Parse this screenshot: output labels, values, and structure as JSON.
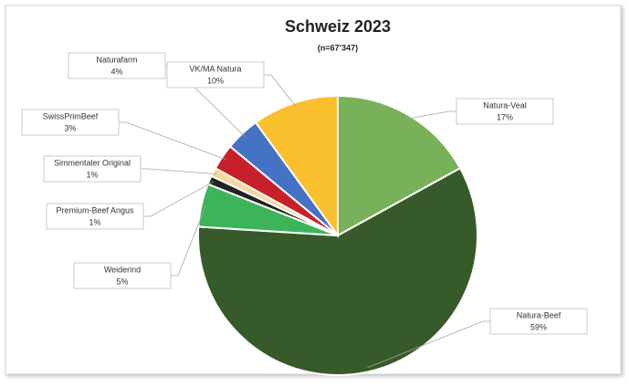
{
  "chart_data": {
    "type": "pie",
    "title": "Schweiz 2023",
    "subtitle": "(n=67’347)",
    "categories": [
      "Natura-Veal",
      "Natura-Beef",
      "Weiderind",
      "Premium-Beef Angus",
      "Simmentaler Original",
      "SwissPrimBeef",
      "Naturafarm",
      "VK/MA Natura"
    ],
    "values": [
      17,
      59,
      5,
      1,
      1,
      3,
      4,
      10
    ],
    "value_labels": [
      "17%",
      "59%",
      "5%",
      "1%",
      "1%",
      "3%",
      "4%",
      "10%"
    ],
    "colors": [
      "#77b25a",
      "#375a2b",
      "#3cb55a",
      "#222222",
      "#f5d79a",
      "#c8202a",
      "#4472c4",
      "#fbc02d"
    ]
  }
}
